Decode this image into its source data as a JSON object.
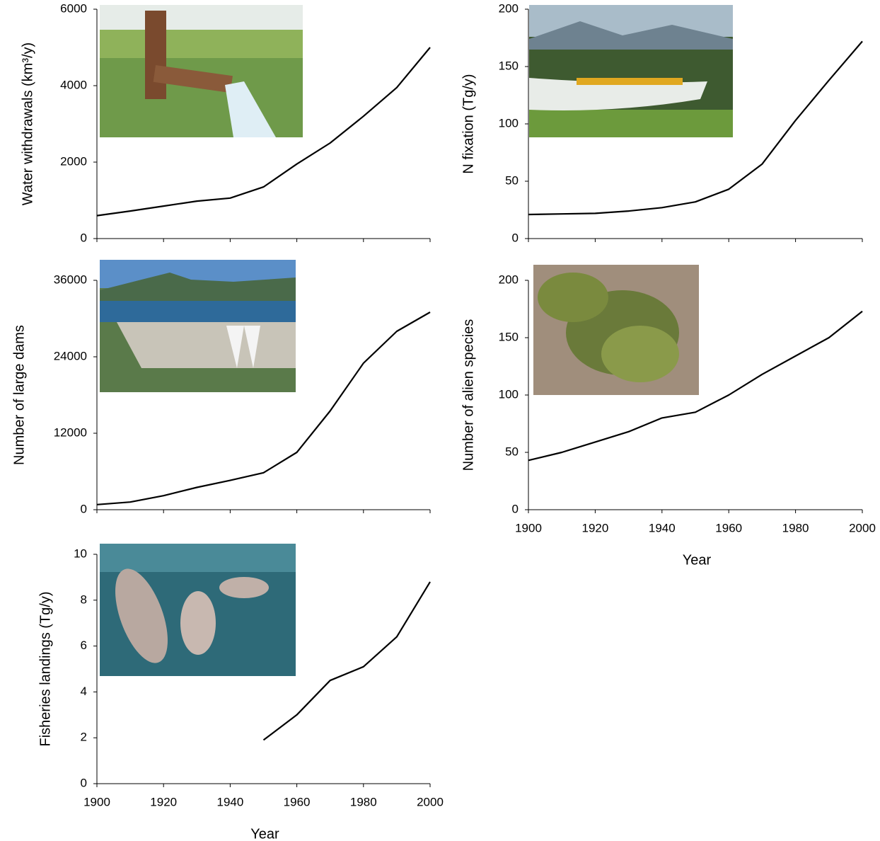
{
  "chart_data": [
    {
      "type": "line",
      "ylabel": "Water withdrawals (km³/y)",
      "x": [
        1900,
        1910,
        1920,
        1930,
        1940,
        1950,
        1960,
        1970,
        1980,
        1990,
        2000
      ],
      "values": [
        600,
        720,
        850,
        980,
        1060,
        1350,
        1950,
        2500,
        3200,
        3950,
        5000
      ],
      "color": "#000000",
      "xlim": [
        1900,
        2000
      ],
      "ylim": [
        0,
        6000
      ],
      "yticks": [
        0,
        2000,
        4000,
        6000
      ],
      "xticks": [
        1900,
        1920,
        1940,
        1960,
        1980,
        2000
      ],
      "xtick_labels": false
    },
    {
      "type": "line",
      "ylabel": "N fixation (Tg/y)",
      "x": [
        1900,
        1910,
        1920,
        1930,
        1940,
        1950,
        1960,
        1970,
        1980,
        1990,
        2000
      ],
      "values": [
        21,
        21.5,
        22,
        24,
        27,
        32,
        43,
        65,
        103,
        138,
        172
      ],
      "color": "#000000",
      "xlim": [
        1900,
        2000
      ],
      "ylim": [
        0,
        200
      ],
      "yticks": [
        0,
        50,
        100,
        150,
        200
      ],
      "xticks": [
        1900,
        1920,
        1940,
        1960,
        1980,
        2000
      ],
      "xtick_labels": false
    },
    {
      "type": "line",
      "ylabel": "Number of large dams",
      "x": [
        1900,
        1910,
        1920,
        1930,
        1940,
        1950,
        1960,
        1970,
        1980,
        1990,
        2000
      ],
      "values": [
        800,
        1200,
        2200,
        3500,
        4600,
        5800,
        9000,
        15500,
        23000,
        28000,
        31000
      ],
      "color": "#000000",
      "xlim": [
        1900,
        2000
      ],
      "ylim": [
        0,
        36000
      ],
      "yticks": [
        0,
        12000,
        24000,
        36000
      ],
      "xticks": [
        1900,
        1920,
        1940,
        1960,
        1980,
        2000
      ],
      "xtick_labels": false
    },
    {
      "type": "line",
      "ylabel": "Number of alien species",
      "xlabel": "Year",
      "x": [
        1900,
        1910,
        1920,
        1930,
        1940,
        1950,
        1960,
        1970,
        1980,
        1990,
        2000
      ],
      "values": [
        43,
        50,
        59,
        68,
        80,
        85,
        100,
        118,
        134,
        150,
        173
      ],
      "color": "#000000",
      "xlim": [
        1900,
        2000
      ],
      "ylim": [
        0,
        200
      ],
      "yticks": [
        0,
        50,
        100,
        150,
        200
      ],
      "xticks": [
        1900,
        1920,
        1940,
        1960,
        1980,
        2000
      ],
      "xtick_labels": true
    },
    {
      "type": "line",
      "ylabel": "Fisheries landings (Tg/y)",
      "xlabel": "Year",
      "x": [
        1900,
        1910,
        1920,
        1930,
        1940,
        1950,
        1960,
        1970,
        1980,
        1990,
        2000
      ],
      "values": [
        null,
        null,
        null,
        null,
        null,
        1.9,
        3.0,
        4.5,
        5.1,
        6.4,
        8.8
      ],
      "color": "#000000",
      "xlim": [
        1900,
        2000
      ],
      "ylim": [
        0,
        10
      ],
      "yticks": [
        0,
        2,
        4,
        6,
        8,
        10
      ],
      "xticks": [
        1900,
        1920,
        1940,
        1960,
        1980,
        2000
      ],
      "xtick_labels": true
    }
  ]
}
